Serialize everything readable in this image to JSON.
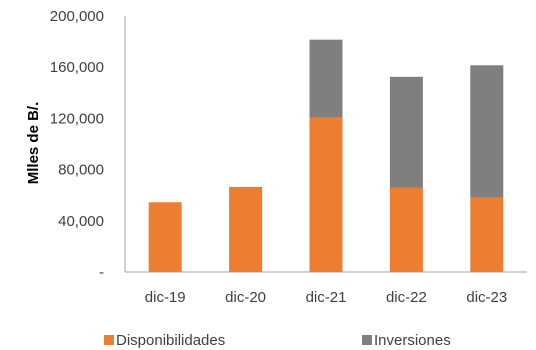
{
  "chart_data": {
    "type": "bar",
    "stacked": true,
    "categories": [
      "dic-19",
      "dic-20",
      "dic-21",
      "dic-22",
      "dic-23"
    ],
    "series": [
      {
        "name": "Disponibilidades",
        "values": [
          54500,
          66500,
          120500,
          66000,
          58000
        ],
        "color": "#ED7D31"
      },
      {
        "name": "Inversiones",
        "values": [
          0,
          0,
          61000,
          86500,
          103500
        ],
        "color": "#7F7F7F"
      }
    ],
    "ylabel": "Mlles de B/.",
    "ylim": [
      0,
      200000
    ],
    "yticks": [
      "-",
      "40,000",
      "80,000",
      "120,000",
      "160,000",
      "200,000"
    ],
    "grid": false,
    "legend": "bottom"
  }
}
